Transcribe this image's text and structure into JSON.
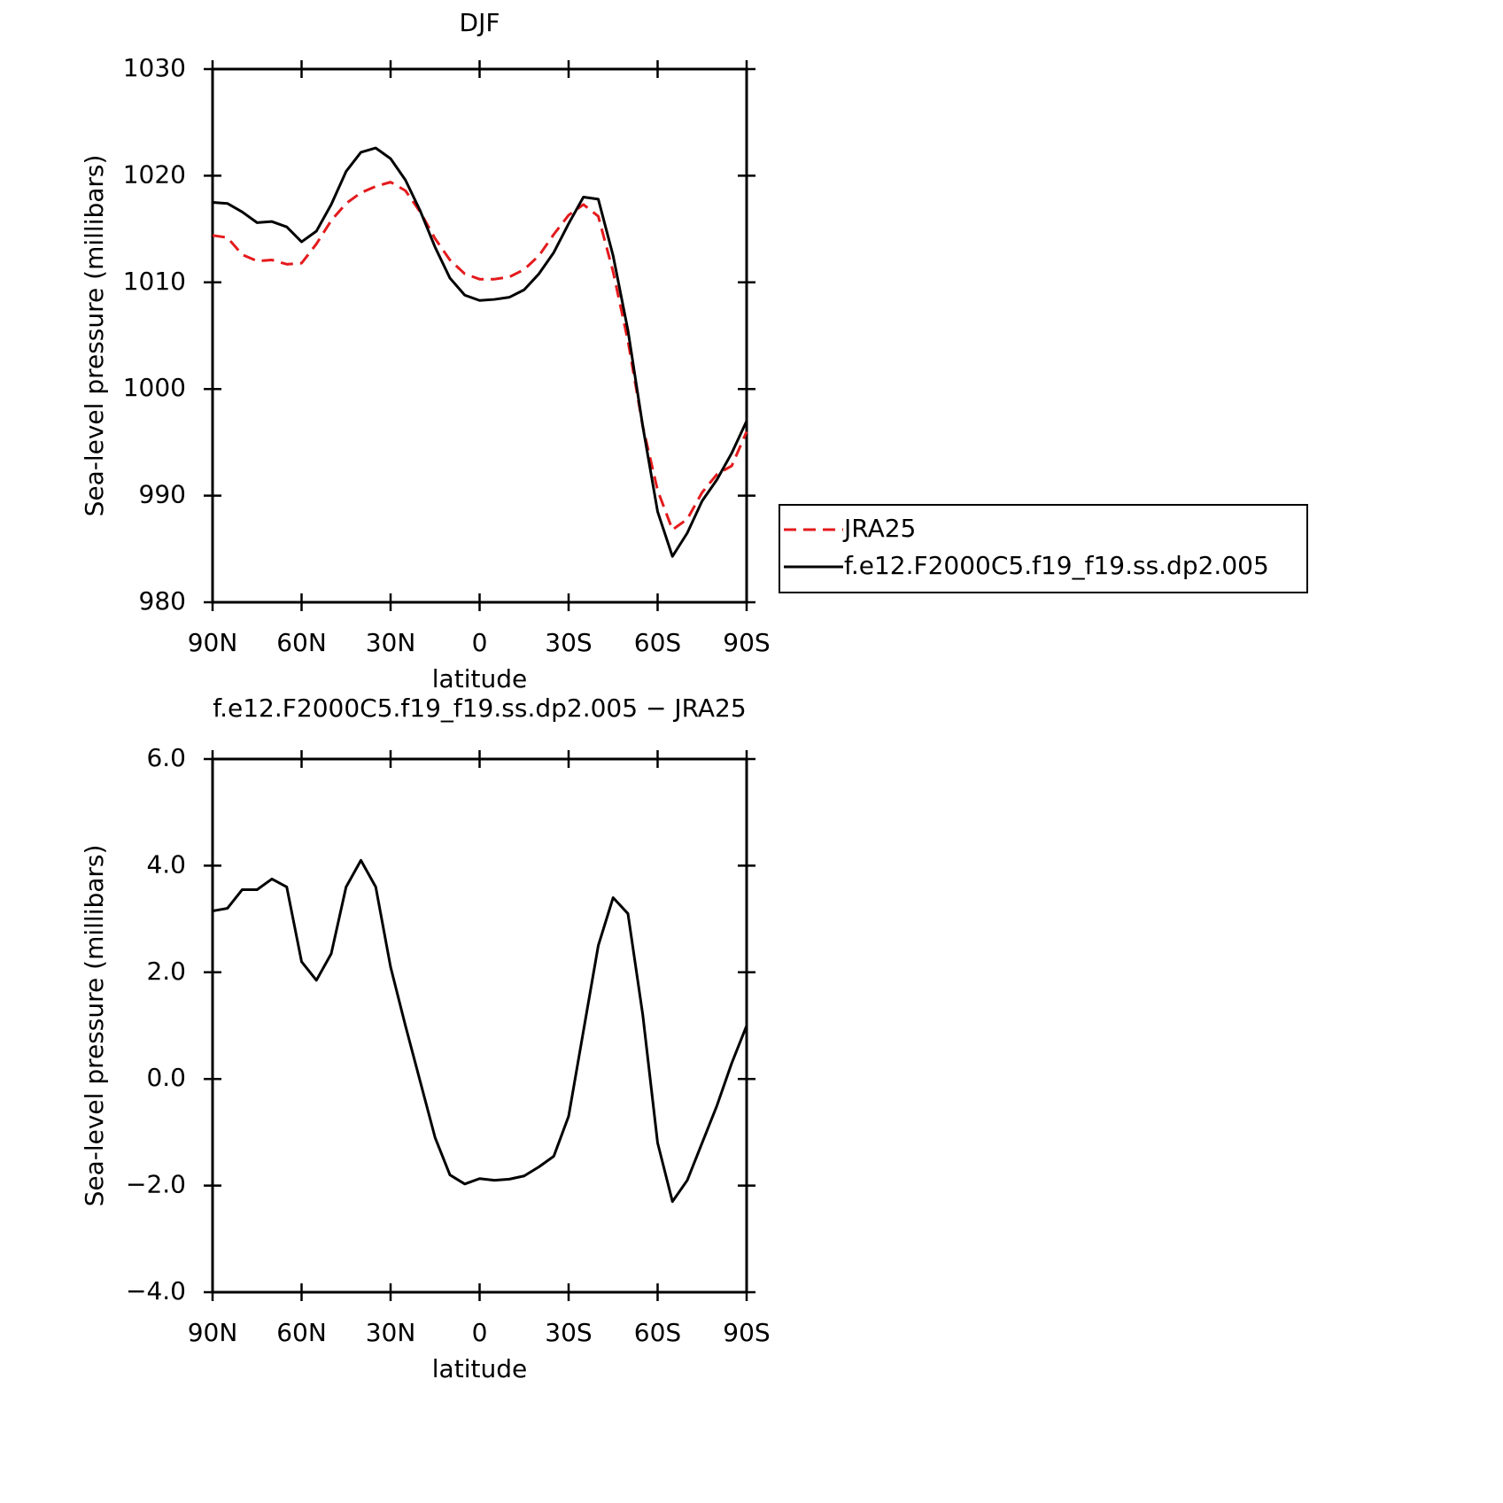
{
  "chart_data": [
    {
      "type": "line",
      "title": "DJF",
      "xlabel": "latitude",
      "ylabel": "Sea-level pressure (millibars)",
      "x": [
        90,
        85,
        80,
        75,
        70,
        65,
        60,
        55,
        50,
        45,
        40,
        35,
        30,
        25,
        20,
        15,
        10,
        5,
        0,
        -5,
        -10,
        -15,
        -20,
        -25,
        -30,
        -35,
        -40,
        -45,
        -50,
        -55,
        -60,
        -65,
        -70,
        -75,
        -80,
        -85,
        -90
      ],
      "series": [
        {
          "name": "JRA25",
          "color": "#e41a1c",
          "dash": true,
          "values": [
            1014.4,
            1014.2,
            1012.6,
            1012.0,
            1012.1,
            1011.7,
            1011.8,
            1013.6,
            1015.8,
            1017.4,
            1018.4,
            1019.0,
            1019.4,
            1018.6,
            1016.6,
            1014.1,
            1012.1,
            1010.8,
            1010.3,
            1010.3,
            1010.5,
            1011.2,
            1012.5,
            1014.5,
            1016.3,
            1017.3,
            1016.2,
            1011.0,
            1004.5,
            996.5,
            990.5,
            986.8,
            987.8,
            990.3,
            992.0,
            992.8,
            996.0
          ]
        },
        {
          "name": "f.e12.F2000C5.f19_f19.ss.dp2.005",
          "color": "#000000",
          "dash": false,
          "values": [
            1017.5,
            1017.4,
            1016.6,
            1015.6,
            1015.7,
            1015.2,
            1013.8,
            1014.8,
            1017.3,
            1020.4,
            1022.2,
            1022.6,
            1021.6,
            1019.6,
            1016.7,
            1013.3,
            1010.4,
            1008.8,
            1008.3,
            1008.4,
            1008.6,
            1009.3,
            1010.8,
            1012.8,
            1015.5,
            1018.0,
            1017.8,
            1012.5,
            1005.5,
            996.5,
            988.5,
            984.3,
            986.5,
            989.5,
            991.5,
            994.0,
            997.0
          ]
        }
      ],
      "xlim": [
        90,
        -90
      ],
      "xticks": [
        {
          "value": 90,
          "label": "90N"
        },
        {
          "value": 60,
          "label": "60N"
        },
        {
          "value": 30,
          "label": "30N"
        },
        0,
        {
          "value": -30,
          "label": "30S"
        },
        {
          "value": -60,
          "label": "60S"
        },
        {
          "value": -90,
          "label": "90S"
        }
      ],
      "ylim": [
        980,
        1030
      ],
      "yticks": [
        980,
        990,
        1000,
        1010,
        1020,
        1030
      ],
      "legend": "right"
    },
    {
      "type": "line",
      "title": "f.e12.F2000C5.f19_f19.ss.dp2.005 − JRA25",
      "xlabel": "latitude",
      "ylabel": "Sea-level pressure (millibars)",
      "x": [
        90,
        85,
        80,
        75,
        70,
        65,
        60,
        55,
        50,
        45,
        40,
        35,
        30,
        25,
        20,
        15,
        10,
        5,
        0,
        -5,
        -10,
        -15,
        -20,
        -25,
        -30,
        -35,
        -40,
        -45,
        -50,
        -55,
        -60,
        -65,
        -70,
        -75,
        -80,
        -85,
        -90
      ],
      "series": [
        {
          "color": "#000000",
          "dash": false,
          "values": [
            3.15,
            3.2,
            3.55,
            3.55,
            3.75,
            3.6,
            2.2,
            1.85,
            2.35,
            3.6,
            4.1,
            3.6,
            2.1,
            1.0,
            -0.05,
            -1.1,
            -1.8,
            -1.97,
            -1.87,
            -1.9,
            -1.88,
            -1.82,
            -1.65,
            -1.45,
            -0.7,
            0.9,
            2.5,
            3.4,
            3.1,
            1.2,
            -1.2,
            -2.3,
            -1.9,
            -1.2,
            -0.5,
            0.3,
            1.0
          ]
        }
      ],
      "xlim": [
        90,
        -90
      ],
      "xticks": [
        {
          "value": 90,
          "label": "90N"
        },
        {
          "value": 60,
          "label": "60N"
        },
        {
          "value": 30,
          "label": "30N"
        },
        0,
        {
          "value": -30,
          "label": "30S"
        },
        {
          "value": -60,
          "label": "60S"
        },
        {
          "value": -90,
          "label": "90S"
        }
      ],
      "ylim": [
        -4,
        6
      ],
      "yticks": [
        {
          "value": -4,
          "label": "−4.0"
        },
        {
          "value": -2,
          "label": "−2.0"
        },
        {
          "value": 0,
          "label": "0.0"
        },
        {
          "value": 2,
          "label": "2.0"
        },
        {
          "value": 4,
          "label": "4.0"
        },
        {
          "value": 6,
          "label": "6.0"
        }
      ]
    }
  ]
}
